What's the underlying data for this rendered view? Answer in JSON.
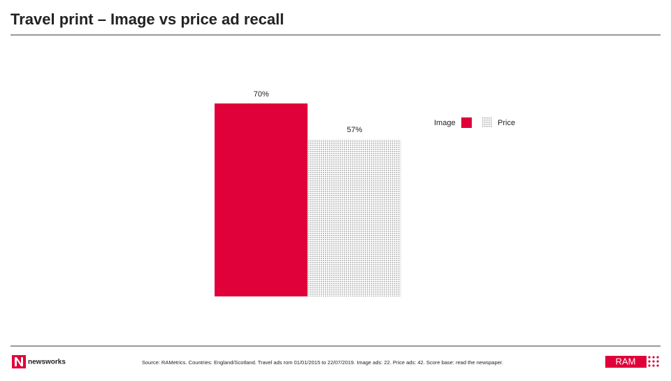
{
  "chart_data": {
    "type": "bar",
    "title": "Travel print – Image vs price ad recall",
    "categories": [
      null
    ],
    "series": [
      {
        "name": "Image",
        "color": "#e0003a",
        "values": [
          70
        ],
        "value_labels": [
          "70%"
        ]
      },
      {
        "name": "Price",
        "color": "#9a9a9a",
        "pattern": "dots",
        "values": [
          57
        ],
        "value_labels": [
          "57%"
        ]
      }
    ],
    "ylim": [
      0,
      70
    ]
  },
  "footer": {
    "source": "Source: RAMetrics. Countries: England/Scotland. Travel ads rom 01/01/2015 to 22/07/2019. Image ads: 22. Price ads: 42. Score base: read the newspaper.",
    "logo_left": "newsworks",
    "logo_right": "RAM"
  }
}
